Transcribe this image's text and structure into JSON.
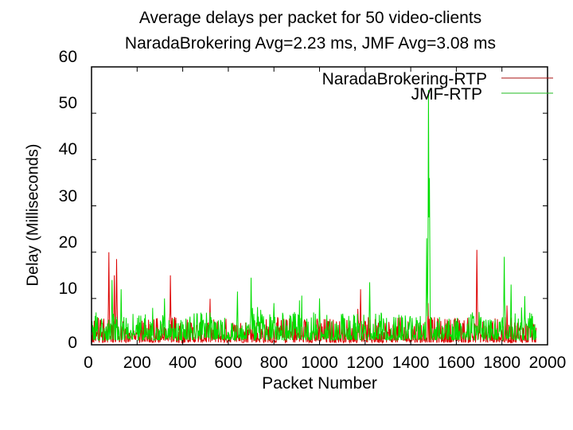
{
  "chart_data": {
    "type": "line",
    "title": "Average delays per packet for 50 video-clients",
    "subtitle": "NaradaBrokering Avg=2.23 ms, JMF Avg=3.08 ms",
    "xlabel": "Packet Number",
    "ylabel": "Delay (Milliseconds)",
    "xlim": [
      0,
      2000
    ],
    "ylim": [
      0,
      60
    ],
    "xticks": [
      0,
      200,
      400,
      600,
      800,
      1000,
      1200,
      1400,
      1600,
      1800,
      2000
    ],
    "yticks": [
      0,
      10,
      20,
      30,
      40,
      50,
      60
    ],
    "grid": false,
    "legend_position": "top-right",
    "x_range_data": [
      0,
      1950
    ],
    "series": [
      {
        "name": "NaradaBrokering-RTP",
        "color": "#dd0000",
        "average": 2.23,
        "baseline_range": [
          0.5,
          6
        ],
        "notable_peaks": [
          [
            75,
            20
          ],
          [
            110,
            18.5
          ],
          [
            100,
            15
          ],
          [
            345,
            15
          ],
          [
            1180,
            12
          ],
          [
            1475,
            9
          ],
          [
            1690,
            20.5
          ]
        ]
      },
      {
        "name": "JMF-RTP",
        "color": "#00dd00",
        "average": 3.08,
        "baseline_range": [
          1,
          7
        ],
        "notable_peaks": [
          [
            90,
            14
          ],
          [
            130,
            12
          ],
          [
            320,
            10
          ],
          [
            640,
            11.5
          ],
          [
            700,
            14.5
          ],
          [
            800,
            9
          ],
          [
            1000,
            10
          ],
          [
            1220,
            13.5
          ],
          [
            1470,
            23
          ],
          [
            1478,
            55
          ],
          [
            1482,
            36
          ],
          [
            1810,
            19
          ],
          [
            1840,
            13
          ],
          [
            1900,
            10.5
          ]
        ]
      }
    ]
  },
  "legend": {
    "items": [
      {
        "label": "NaradaBrokering-RTP",
        "color": "#aa1111"
      },
      {
        "label": "JMF-RTP",
        "color": "#22bb22"
      }
    ]
  },
  "axis_labels": {
    "y": [
      "60",
      "50",
      "40",
      "30",
      "20",
      "10",
      "0"
    ],
    "x": [
      "0",
      "200",
      "400",
      "600",
      "800",
      "1000",
      "1200",
      "1400",
      "1600",
      "1800",
      "2000"
    ]
  }
}
